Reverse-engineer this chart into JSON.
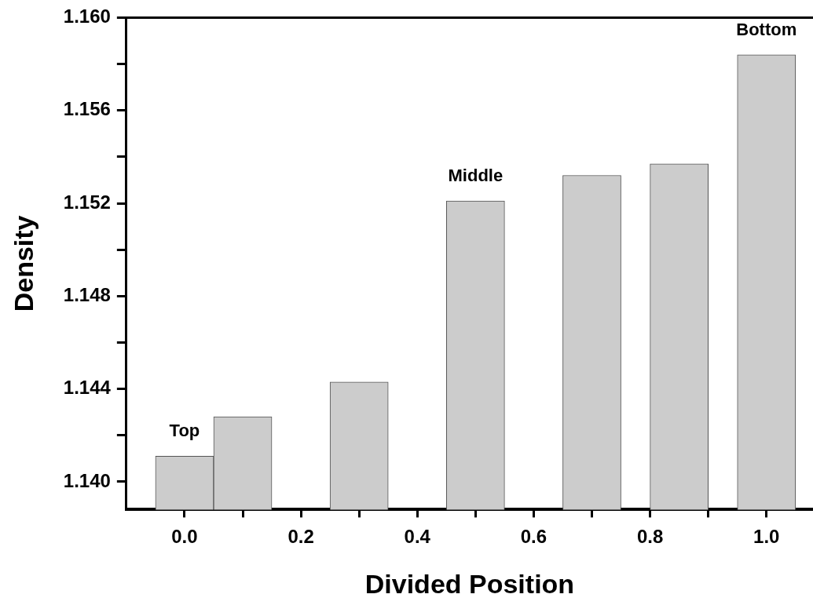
{
  "chart_data": {
    "type": "bar",
    "xlabel": "Divided Position",
    "ylabel": "Density",
    "x": [
      0,
      0.1,
      0.3,
      0.5,
      0.7,
      0.85,
      1.0
    ],
    "values": [
      1.1411,
      1.1428,
      1.1443,
      1.1521,
      1.1532,
      1.1537,
      1.1584
    ],
    "color": "#cccccc",
    "xlim": [
      -0.1,
      1.08
    ],
    "xticks": [
      {
        "value": 0,
        "label": "0.0"
      },
      {
        "value": 0.1,
        "label": null
      },
      0.2,
      {
        "value": 0.3,
        "label": null
      },
      0.4,
      {
        "value": 0.5,
        "label": null
      },
      0.6,
      {
        "value": 0.7,
        "label": null
      },
      0.8,
      {
        "value": 0.9,
        "label": null
      },
      {
        "value": 1,
        "label": "1.0"
      }
    ],
    "ylim": [
      1.1388,
      1.16
    ],
    "yticks": [
      {
        "value": 1.14,
        "label": "1.140"
      },
      {
        "value": 1.142,
        "label": null
      },
      {
        "value": 1.144,
        "label": "1.144"
      },
      {
        "value": 1.146,
        "label": null
      },
      {
        "value": 1.148,
        "label": "1.148"
      },
      {
        "value": 1.15,
        "label": null
      },
      {
        "value": 1.152,
        "label": "1.152"
      },
      {
        "value": 1.154,
        "label": null
      },
      {
        "value": 1.156,
        "label": "1.156"
      },
      {
        "value": 1.158,
        "label": null
      },
      {
        "value": 1.16,
        "label": "1.160"
      }
    ],
    "annotations": [
      {
        "text": "Top",
        "x": 0,
        "y": 1.1411
      },
      {
        "text": "Middle",
        "x": 0.5,
        "y": 1.1521
      },
      {
        "text": "Bottom",
        "x": 1.0,
        "y": 1.1584
      }
    ],
    "grid": false,
    "legend": false
  }
}
